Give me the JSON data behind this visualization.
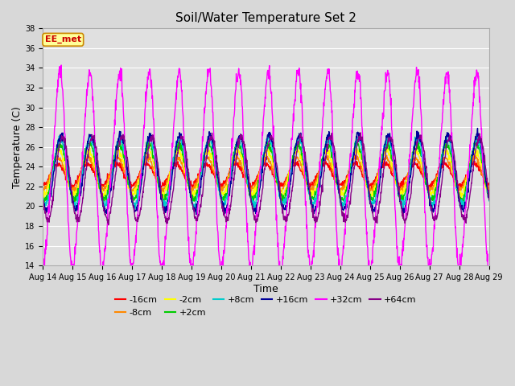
{
  "title": "Soil/Water Temperature Set 2",
  "xlabel": "Time",
  "ylabel": "Temperature (C)",
  "ylim": [
    14,
    38
  ],
  "yticks": [
    14,
    16,
    18,
    20,
    22,
    24,
    26,
    28,
    30,
    32,
    34,
    36,
    38
  ],
  "figsize": [
    6.4,
    4.8
  ],
  "dpi": 100,
  "series": [
    {
      "label": "-16cm",
      "color": "#ff0000"
    },
    {
      "label": "-8cm",
      "color": "#ff8800"
    },
    {
      "label": "-2cm",
      "color": "#ffff00"
    },
    {
      "label": "+2cm",
      "color": "#00cc00"
    },
    {
      "label": "+8cm",
      "color": "#00cccc"
    },
    {
      "label": "+16cm",
      "color": "#000099"
    },
    {
      "label": "+32cm",
      "color": "#ff00ff"
    },
    {
      "label": "+64cm",
      "color": "#880088"
    }
  ],
  "annotation_text": "EE_met",
  "annotation_color": "#cc0000",
  "annotation_bg": "#ffff99",
  "annotation_border": "#cc8800",
  "fig_bg": "#d8d8d8",
  "plot_bg": "#e0e0e0",
  "grid_color": "#ffffff",
  "tick_fontsize": 7,
  "title_fontsize": 11,
  "axis_label_fontsize": 9,
  "legend_fontsize": 8,
  "linewidth": 1.0
}
